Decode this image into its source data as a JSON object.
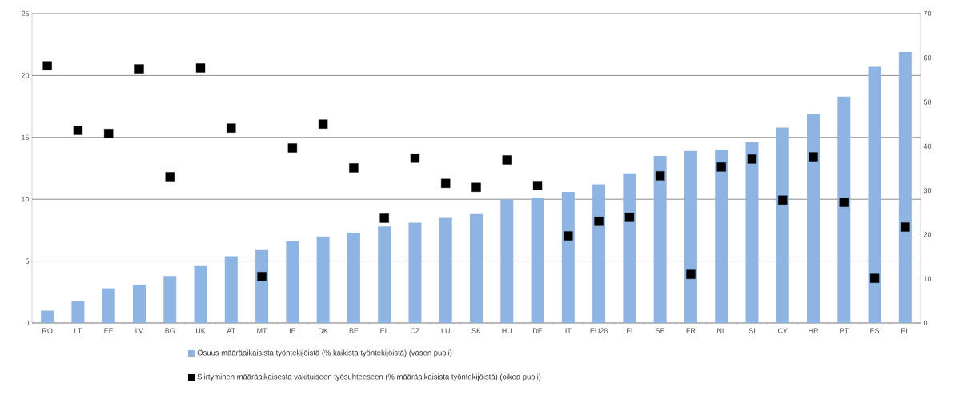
{
  "chart_data": {
    "type": "bar",
    "categories": [
      "RO",
      "LT",
      "EE",
      "LV",
      "BG",
      "UK",
      "AT",
      "MT",
      "IE",
      "DK",
      "BE",
      "EL",
      "CZ",
      "LU",
      "SK",
      "HU",
      "DE",
      "IT",
      "EU28",
      "FI",
      "SE",
      "FR",
      "NL",
      "SI",
      "CY",
      "HR",
      "PT",
      "ES",
      "PL"
    ],
    "series": [
      {
        "name": "Osuus määräaikaisista työntekijöistä (% kaikista työntekijöistä) (vasen puoli)",
        "color": "#8eb4e3",
        "values": [
          1.0,
          1.8,
          2.8,
          3.1,
          3.8,
          4.6,
          5.4,
          5.9,
          6.6,
          7.0,
          7.3,
          7.8,
          8.1,
          8.5,
          8.8,
          10.0,
          10.1,
          10.6,
          11.2,
          12.1,
          13.5,
          13.9,
          14.0,
          14.6,
          15.8,
          16.9,
          18.3,
          20.7,
          21.9
        ]
      },
      {
        "name": "Siirtyminen määräaikaisesta vakituiseen työsuhteeseen (% määräaikaisista työntekijöistä) (oikea puoli)",
        "type": "scatter",
        "axis": "y2",
        "color": "#000000",
        "values": [
          58.2,
          43.6,
          42.9,
          57.5,
          33.1,
          57.7,
          44.1,
          10.5,
          39.6,
          45.0,
          35.1,
          23.7,
          37.3,
          31.6,
          30.7,
          36.9,
          31.1,
          19.7,
          23.0,
          23.9,
          33.3,
          11.0,
          35.3,
          37.1,
          27.8,
          37.6,
          27.3,
          10.1,
          21.7
        ]
      }
    ],
    "ylim": [
      0,
      25
    ],
    "yticks": [
      0,
      5,
      10,
      15,
      20,
      25
    ],
    "y2lim": [
      0,
      70
    ],
    "y2ticks": [
      0,
      10,
      20,
      30,
      40,
      50,
      60,
      70
    ],
    "grid": "y",
    "legend": "bottom",
    "marker": "square"
  }
}
